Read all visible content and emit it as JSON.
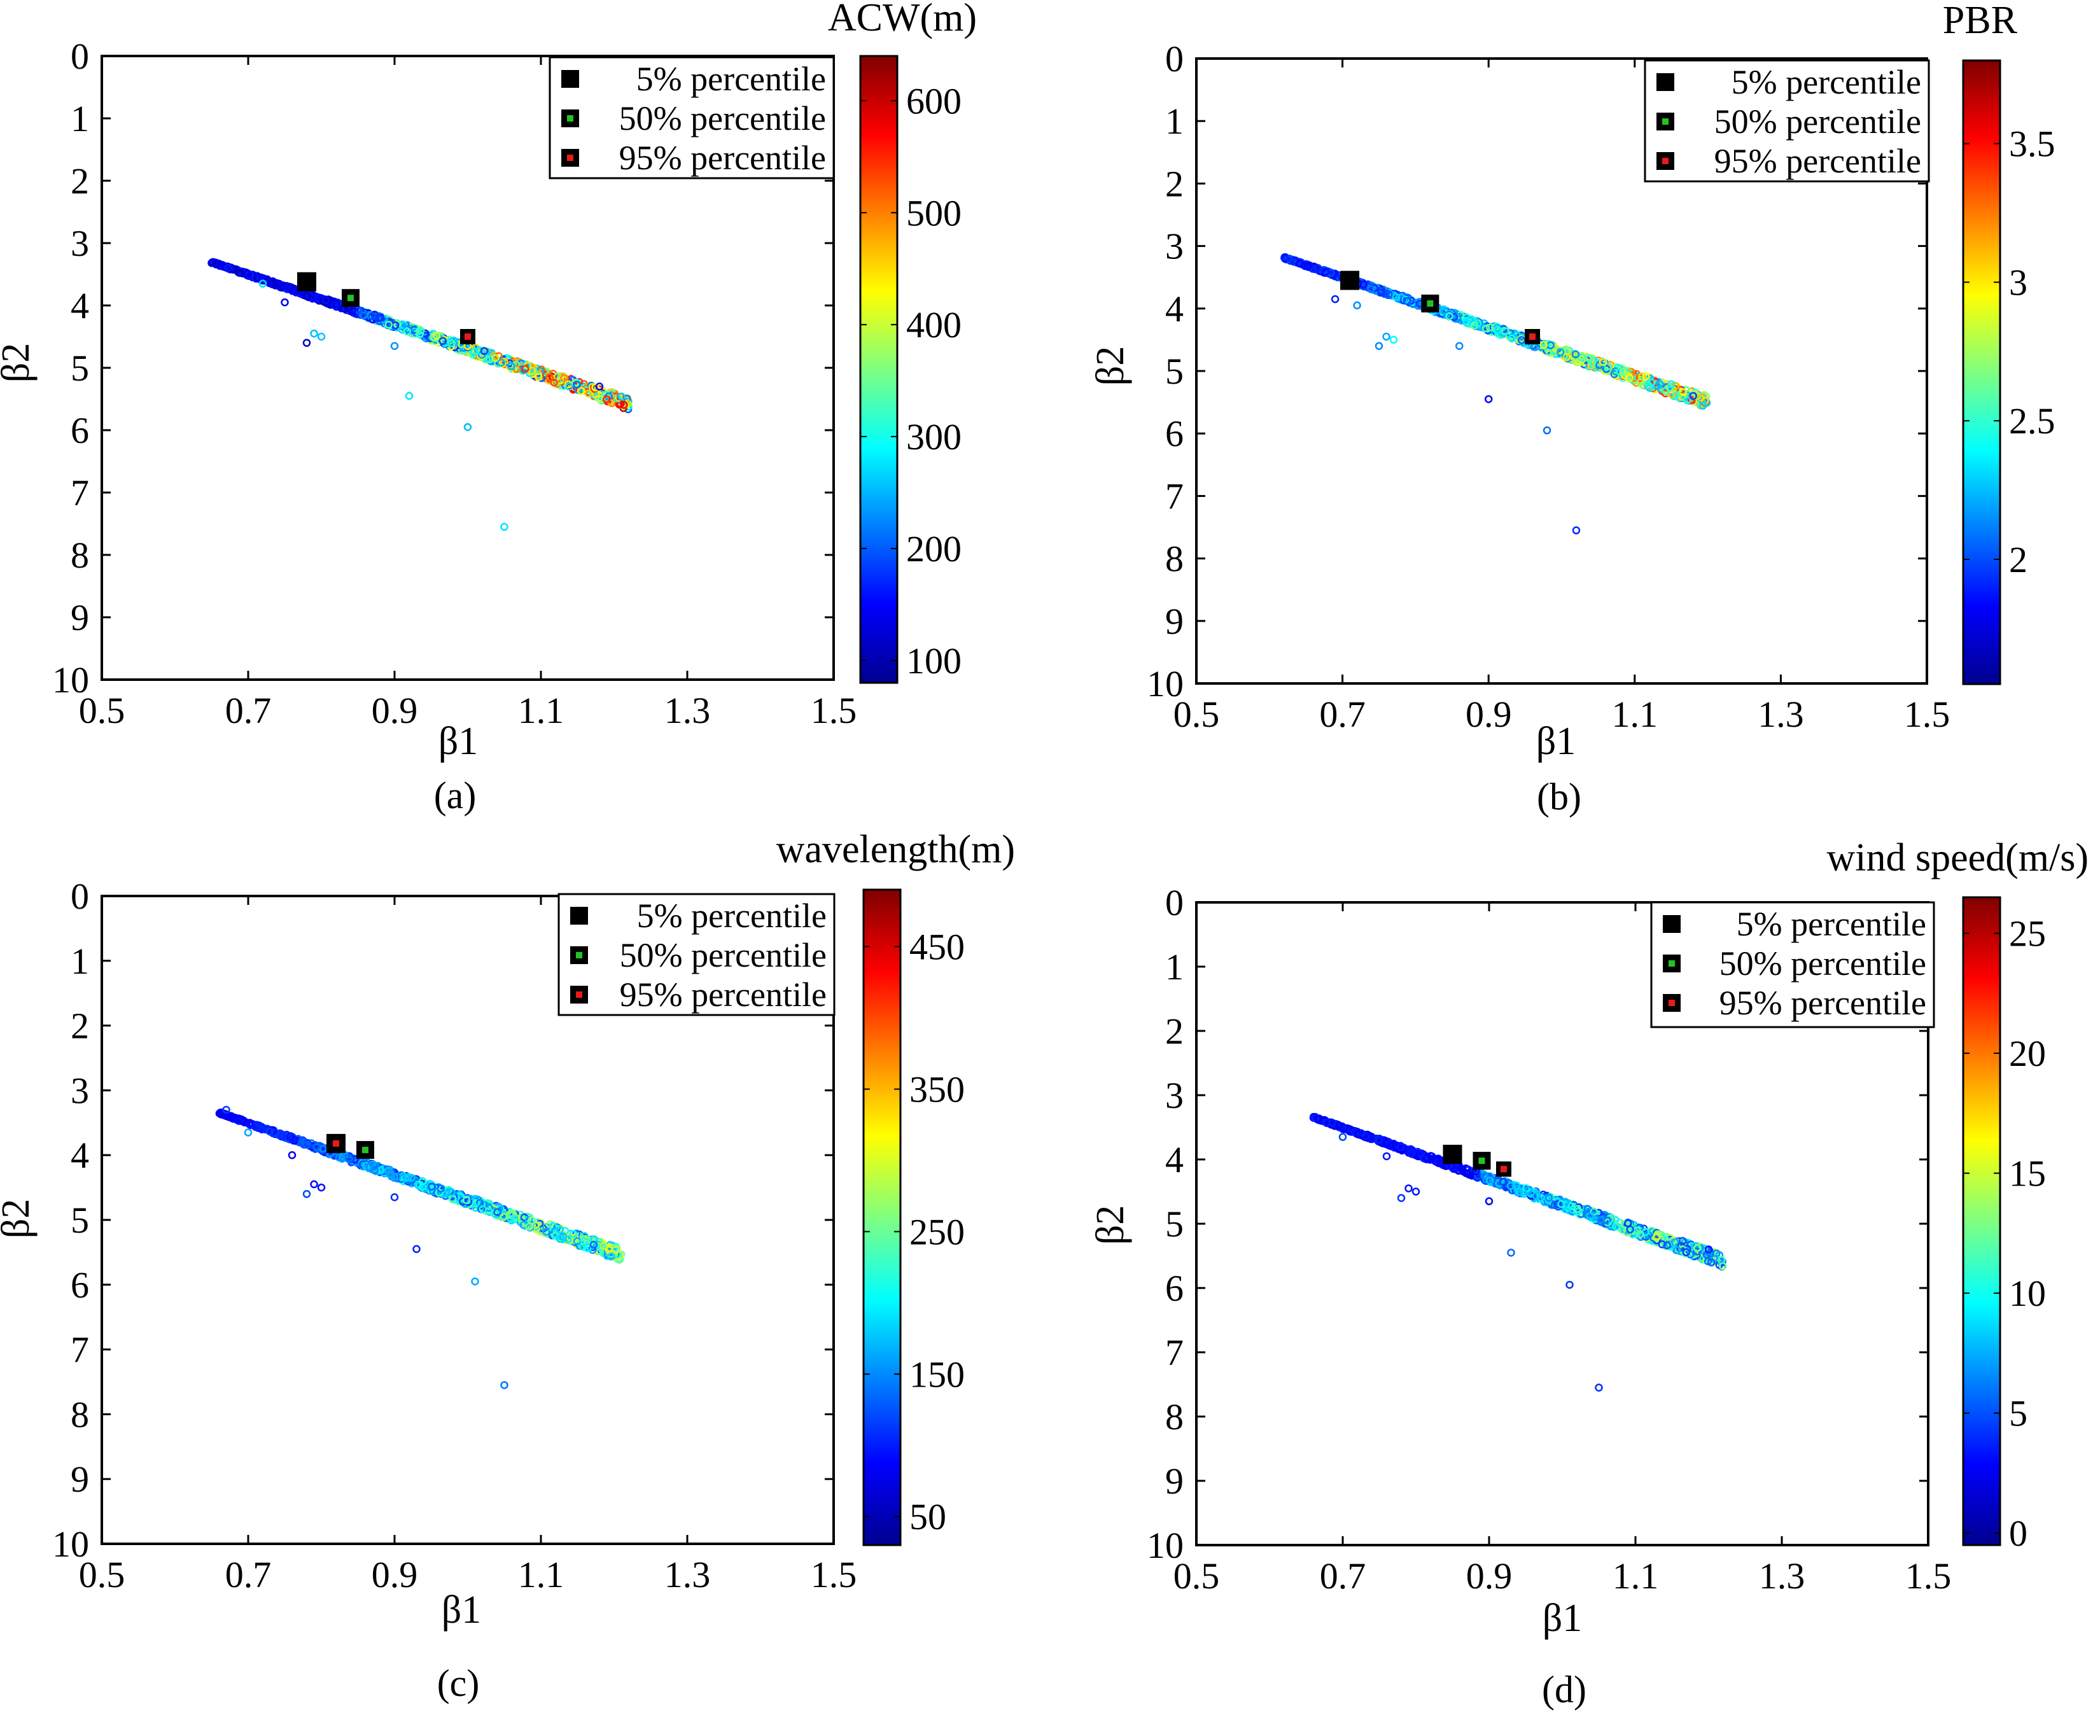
{
  "chart_data": [
    {
      "panel": "a",
      "caption": "(a)",
      "type": "scatter",
      "xlabel": "β1",
      "ylabel": "β2",
      "xlim": [
        0.5,
        1.5
      ],
      "ylim": [
        10,
        0
      ],
      "xticks": [
        "0.5",
        "0.7",
        "0.9",
        "1.1",
        "1.3",
        "1.5"
      ],
      "yticks": [
        "0",
        "1",
        "2",
        "3",
        "4",
        "5",
        "6",
        "7",
        "8",
        "9",
        "10"
      ],
      "colorbar": {
        "title": "ACW(m)",
        "min": 80,
        "max": 640,
        "ticks": [
          "100",
          "200",
          "300",
          "400",
          "500",
          "600"
        ],
        "tick_values": [
          100,
          200,
          300,
          400,
          500,
          600
        ]
      },
      "legend": [
        {
          "label": "5% percentile",
          "x": 0.78,
          "y": 3.62,
          "marker_color": "#000000"
        },
        {
          "label": "50% percentile",
          "x": 0.84,
          "y": 3.88,
          "marker_color": "#22c322"
        },
        {
          "label": "95% percentile",
          "x": 1.0,
          "y": 4.5,
          "marker_color": "#e81a1a"
        }
      ],
      "outliers": [
        [
          0.72,
          3.65
        ],
        [
          0.75,
          3.95
        ],
        [
          0.78,
          4.6
        ],
        [
          0.79,
          4.45
        ],
        [
          0.8,
          4.5
        ],
        [
          0.92,
          5.45
        ],
        [
          1.0,
          5.95
        ],
        [
          1.05,
          7.55
        ],
        [
          0.9,
          4.65
        ],
        [
          1.18,
          5.3
        ]
      ],
      "trend": {
        "x_start": 0.65,
        "x_end": 1.22,
        "color_low": 100,
        "color_high": 560,
        "dark_frac": 0.35
      }
    },
    {
      "panel": "b",
      "caption": "(b)",
      "type": "scatter",
      "xlabel": "β1",
      "ylabel": "β2",
      "xlim": [
        0.5,
        1.5
      ],
      "ylim": [
        10,
        0
      ],
      "xticks": [
        "0.5",
        "0.7",
        "0.9",
        "1.1",
        "1.3",
        "1.5"
      ],
      "yticks": [
        "0",
        "1",
        "2",
        "3",
        "4",
        "5",
        "6",
        "7",
        "8",
        "9",
        "10"
      ],
      "colorbar": {
        "title": "PBR",
        "min": 1.55,
        "max": 3.8,
        "ticks": [
          "2",
          "2.5",
          "3",
          "3.5"
        ],
        "tick_values": [
          2,
          2.5,
          3,
          3.5
        ]
      },
      "legend": [
        {
          "label": "5% percentile",
          "x": 0.71,
          "y": 3.55,
          "marker_color": "#000000"
        },
        {
          "label": "50% percentile",
          "x": 0.82,
          "y": 3.92,
          "marker_color": "#22c322"
        },
        {
          "label": "95% percentile",
          "x": 0.96,
          "y": 4.45,
          "marker_color": "#e81a1a"
        }
      ],
      "outliers": [
        [
          0.69,
          3.85
        ],
        [
          0.72,
          3.95
        ],
        [
          0.75,
          4.6
        ],
        [
          0.76,
          4.45
        ],
        [
          0.77,
          4.5
        ],
        [
          0.86,
          4.6
        ],
        [
          0.9,
          5.45
        ],
        [
          0.98,
          5.95
        ],
        [
          1.02,
          7.55
        ],
        [
          1.18,
          5.4
        ]
      ],
      "trend": {
        "x_start": 0.62,
        "x_end": 1.2,
        "color_low": 1.8,
        "color_high": 3.3,
        "dark_frac": 0.2
      }
    },
    {
      "panel": "c",
      "caption": "(c)",
      "type": "scatter",
      "xlabel": "β1",
      "ylabel": "β2",
      "xlim": [
        0.5,
        1.5
      ],
      "ylim": [
        10,
        0
      ],
      "xticks": [
        "0.5",
        "0.7",
        "0.9",
        "1.1",
        "1.3",
        "1.5"
      ],
      "yticks": [
        "0",
        "1",
        "2",
        "3",
        "4",
        "5",
        "6",
        "7",
        "8",
        "9",
        "10"
      ],
      "colorbar": {
        "title": "wavelength(m)",
        "min": 30,
        "max": 490,
        "ticks": [
          "50",
          "150",
          "250",
          "350",
          "450"
        ],
        "tick_values": [
          50,
          150,
          250,
          350,
          450
        ]
      },
      "legend": [
        {
          "label": "5% percentile",
          "x": 0.82,
          "y": 3.82,
          "marker_color": "#000000"
        },
        {
          "label": "50% percentile",
          "x": 0.86,
          "y": 3.92,
          "marker_color": "#22c322"
        },
        {
          "label": "95% percentile",
          "x": 0.82,
          "y": 3.82,
          "marker_color": "#e81a1a"
        }
      ],
      "outliers": [
        [
          0.67,
          3.3
        ],
        [
          0.7,
          3.65
        ],
        [
          0.76,
          4.0
        ],
        [
          0.78,
          4.6
        ],
        [
          0.79,
          4.45
        ],
        [
          0.8,
          4.5
        ],
        [
          0.93,
          5.45
        ],
        [
          1.01,
          5.95
        ],
        [
          1.05,
          7.55
        ],
        [
          0.9,
          4.65
        ]
      ],
      "trend": {
        "x_start": 0.66,
        "x_end": 1.21,
        "color_low": 80,
        "color_high": 300,
        "dark_frac": 0.0
      }
    },
    {
      "panel": "d",
      "caption": "(d)",
      "type": "scatter",
      "xlabel": "β1",
      "ylabel": "β2",
      "xlim": [
        0.5,
        1.5
      ],
      "ylim": [
        10,
        0
      ],
      "xticks": [
        "0.5",
        "0.7",
        "0.9",
        "1.1",
        "1.3",
        "1.5"
      ],
      "yticks": [
        "0",
        "1",
        "2",
        "3",
        "4",
        "5",
        "6",
        "7",
        "8",
        "9",
        "10"
      ],
      "colorbar": {
        "title": "wind speed(m/s)",
        "min": -0.5,
        "max": 26.5,
        "ticks": [
          "0",
          "5",
          "10",
          "15",
          "20",
          "25"
        ],
        "tick_values": [
          0,
          5,
          10,
          15,
          20,
          25
        ]
      },
      "legend": [
        {
          "label": "5% percentile",
          "x": 0.85,
          "y": 3.92,
          "marker_color": "#000000"
        },
        {
          "label": "50% percentile",
          "x": 0.89,
          "y": 4.02,
          "marker_color": "#22c322"
        },
        {
          "label": "95% percentile",
          "x": 0.92,
          "y": 4.15,
          "marker_color": "#e81a1a"
        }
      ],
      "outliers": [
        [
          0.7,
          3.65
        ],
        [
          0.76,
          3.95
        ],
        [
          0.78,
          4.6
        ],
        [
          0.79,
          4.45
        ],
        [
          0.8,
          4.5
        ],
        [
          0.93,
          5.45
        ],
        [
          1.01,
          5.95
        ],
        [
          1.05,
          7.55
        ],
        [
          0.9,
          4.65
        ],
        [
          1.2,
          5.4
        ]
      ],
      "trend": {
        "x_start": 0.66,
        "x_end": 1.22,
        "color_low": 2,
        "color_high": 14,
        "dark_frac": 0.4
      }
    }
  ]
}
